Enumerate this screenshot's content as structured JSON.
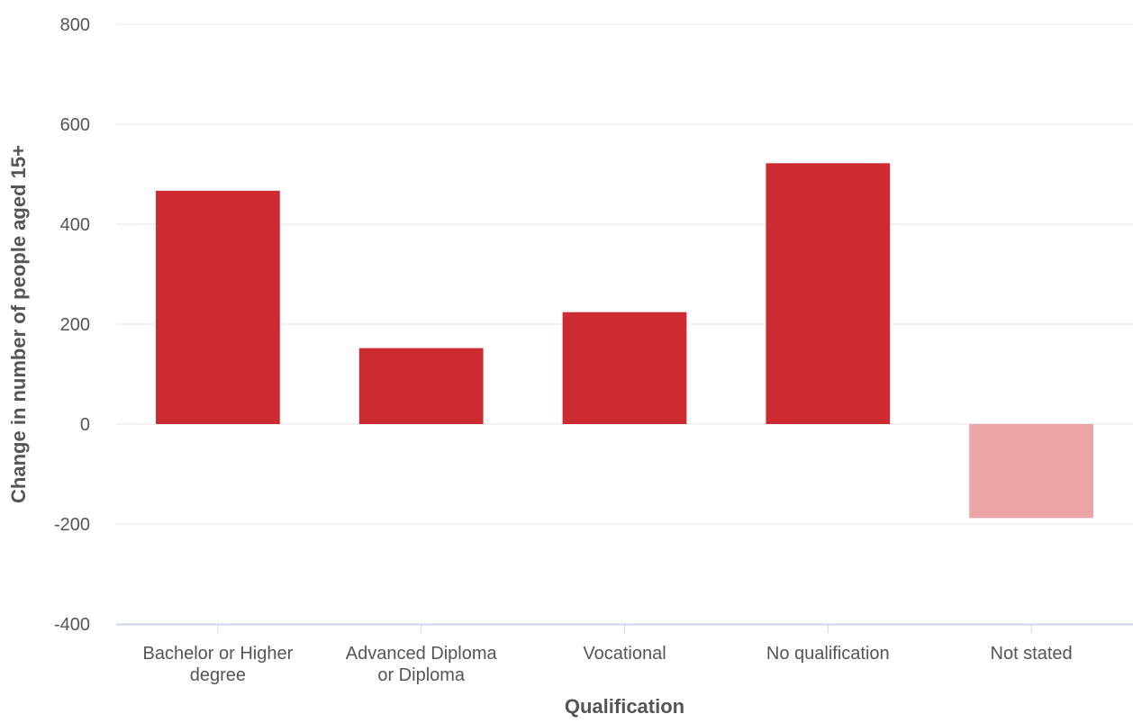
{
  "chart_data": {
    "type": "bar",
    "xlabel": "Qualification",
    "ylabel": "Change in number of people aged 15+",
    "ylim": [
      -400,
      800
    ],
    "yticks": [
      -400,
      -200,
      0,
      200,
      400,
      600,
      800
    ],
    "grid": true,
    "categories": [
      [
        "Bachelor or Higher",
        "degree"
      ],
      [
        "Advanced Diploma",
        "or Diploma"
      ],
      [
        "Vocational"
      ],
      [
        "No qualification"
      ],
      [
        "Not stated"
      ]
    ],
    "values": [
      467,
      152,
      224,
      522,
      -188
    ],
    "colors": {
      "positive": "#cc2b31",
      "negative": "#eba5a7",
      "grid": "#e6e6e6",
      "axis": "#ccd6eb"
    }
  }
}
